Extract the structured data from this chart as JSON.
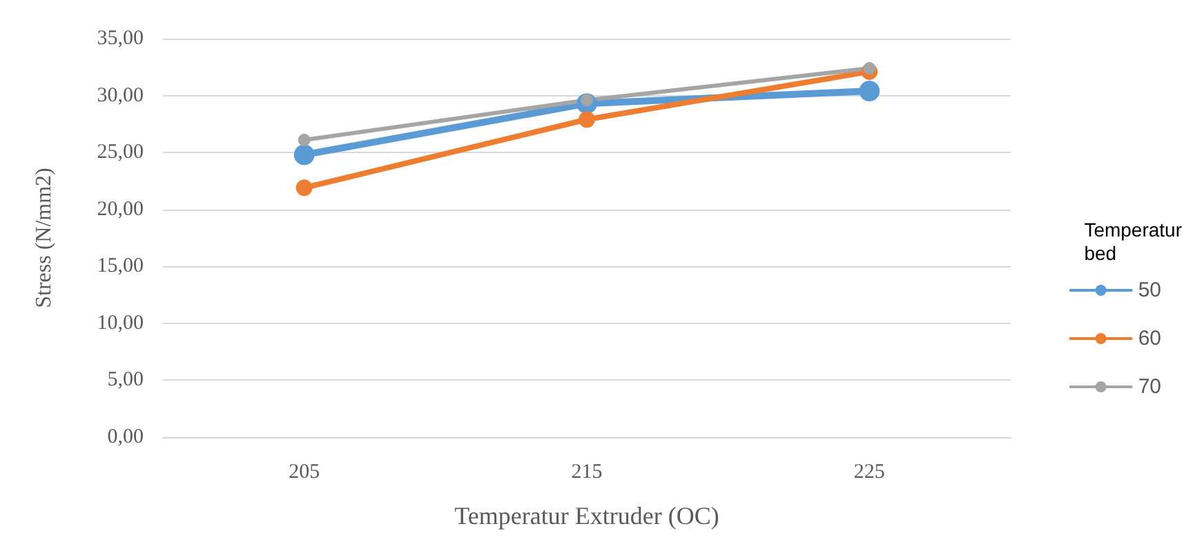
{
  "chart_data": {
    "type": "line",
    "xlabel": "Temperatur Extruder (OC)",
    "ylabel": "Stress (N/mm2)",
    "legend_title": "Temperatur\nbed",
    "categories": [
      "205",
      "215",
      "225"
    ],
    "series": [
      {
        "name": "50",
        "color": "#5b9bd5",
        "values": [
          24.8,
          29.3,
          30.4
        ]
      },
      {
        "name": "60",
        "color": "#ed7d31",
        "values": [
          21.9,
          27.9,
          32.1
        ]
      },
      {
        "name": "70",
        "color": "#a5a5a5",
        "values": [
          26.1,
          29.6,
          32.4
        ]
      }
    ],
    "ylim": [
      0,
      35
    ],
    "yticks": [
      {
        "value": 0,
        "label": "0,00"
      },
      {
        "value": 5,
        "label": "5,00"
      },
      {
        "value": 10,
        "label": "10,00"
      },
      {
        "value": 15,
        "label": "15,00"
      },
      {
        "value": 20,
        "label": "20,00"
      },
      {
        "value": 25,
        "label": "25,00"
      },
      {
        "value": 30,
        "label": "30,00"
      },
      {
        "value": 35,
        "label": "35,00"
      }
    ],
    "grid": "y",
    "legend": "right",
    "marker": "circle",
    "line_style": "solid"
  }
}
